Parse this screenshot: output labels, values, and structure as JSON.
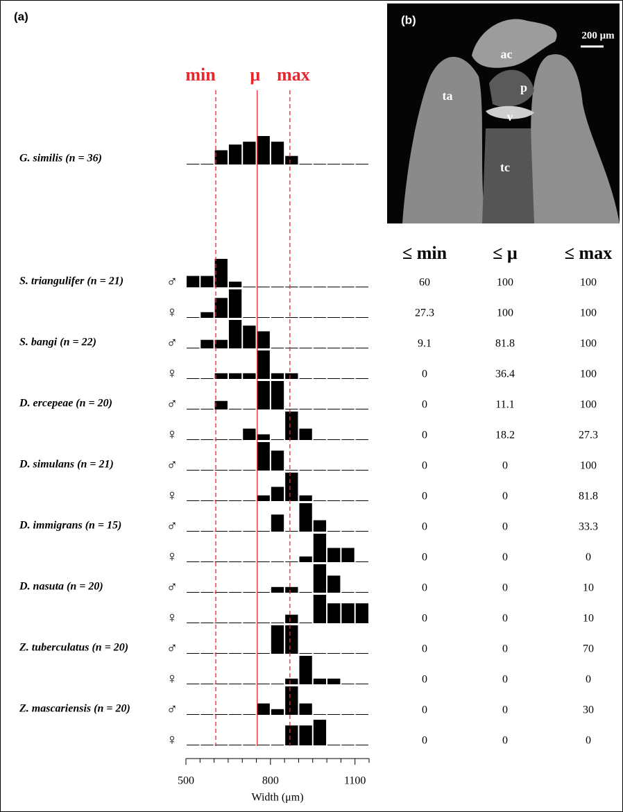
{
  "panel_a": "(a)",
  "panel_b": "(b)",
  "chart_data": {
    "type": "histogram",
    "bins": [
      500,
      550,
      600,
      650,
      700,
      750,
      800,
      850,
      900,
      950,
      1000,
      1050,
      1100,
      1150
    ],
    "xlim": [
      500,
      1150
    ],
    "xticks": [
      500,
      800,
      1100
    ],
    "minor_xticks": [
      550,
      600,
      650,
      700,
      750,
      850,
      900,
      950,
      1000,
      1050,
      1150
    ],
    "xlabel": "Width (μm)",
    "ylim": [
      0,
      10
    ],
    "color": "#000000",
    "reference_color": "#e8262e",
    "reference_lines": [
      {
        "label": "min",
        "value": 606,
        "style": "dashed"
      },
      {
        "label": "μ",
        "value": 753,
        "style": "solid"
      },
      {
        "label": "max",
        "value": 869,
        "style": "dashed"
      }
    ],
    "reference": {
      "label": "G. similis (n = 36)",
      "values": [
        0,
        0,
        5,
        7,
        8,
        10,
        8,
        3,
        0,
        0,
        0,
        0,
        0
      ]
    },
    "species": [
      {
        "label": "S. triangulifer (n = 21)",
        "rows": [
          {
            "sex": "♂",
            "values": [
              4,
              4,
              10,
              2,
              0,
              0,
              0,
              0,
              0,
              0,
              0,
              0,
              0
            ]
          },
          {
            "sex": "♀",
            "values": [
              0,
              2,
              7,
              10,
              0,
              0,
              0,
              0,
              0,
              0,
              0,
              0,
              0
            ]
          }
        ]
      },
      {
        "label": "S. bangi (n = 22)",
        "rows": [
          {
            "sex": "♂",
            "values": [
              0,
              3,
              3,
              10,
              8,
              6,
              0,
              0,
              0,
              0,
              0,
              0,
              0
            ]
          },
          {
            "sex": "♀",
            "values": [
              0,
              0,
              2,
              2,
              2,
              10,
              2,
              2,
              0,
              0,
              0,
              0,
              0
            ]
          }
        ]
      },
      {
        "label": "D. ercepeae (n = 20)",
        "rows": [
          {
            "sex": "♂",
            "values": [
              0,
              0,
              3,
              0,
              0,
              10,
              10,
              0,
              0,
              0,
              0,
              0,
              0
            ]
          },
          {
            "sex": "♀",
            "values": [
              0,
              0,
              0,
              0,
              4,
              2,
              0,
              10,
              4,
              0,
              0,
              0,
              0
            ]
          }
        ]
      },
      {
        "label": "D. simulans (n = 21)",
        "rows": [
          {
            "sex": "♂",
            "values": [
              0,
              0,
              0,
              0,
              0,
              10,
              7,
              0,
              0,
              0,
              0,
              0,
              0
            ]
          },
          {
            "sex": "♀",
            "values": [
              0,
              0,
              0,
              0,
              0,
              2,
              5,
              10,
              2,
              0,
              0,
              0,
              0
            ]
          }
        ]
      },
      {
        "label": "D. immigrans (n = 15)",
        "rows": [
          {
            "sex": "♂",
            "values": [
              0,
              0,
              0,
              0,
              0,
              0,
              6,
              0,
              10,
              4,
              0,
              0,
              0
            ]
          },
          {
            "sex": "♀",
            "values": [
              0,
              0,
              0,
              0,
              0,
              0,
              0,
              0,
              2,
              10,
              5,
              5,
              0
            ]
          }
        ]
      },
      {
        "label": "D. nasuta (n = 20)",
        "rows": [
          {
            "sex": "♂",
            "values": [
              0,
              0,
              0,
              0,
              0,
              0,
              2,
              2,
              0,
              10,
              6,
              0,
              0
            ]
          },
          {
            "sex": "♀",
            "values": [
              0,
              0,
              0,
              0,
              0,
              0,
              0,
              3,
              0,
              10,
              7,
              7,
              7
            ]
          }
        ]
      },
      {
        "label": "Z. tuberculatus (n = 20)",
        "rows": [
          {
            "sex": "♂",
            "values": [
              0,
              0,
              0,
              0,
              0,
              0,
              10,
              10,
              0,
              0,
              0,
              0,
              0
            ]
          },
          {
            "sex": "♀",
            "values": [
              0,
              0,
              0,
              0,
              0,
              0,
              0,
              2,
              10,
              2,
              2,
              0,
              0
            ]
          }
        ]
      },
      {
        "label": "Z. mascariensis (n = 20)",
        "rows": [
          {
            "sex": "♂",
            "values": [
              0,
              0,
              0,
              0,
              0,
              4,
              2,
              10,
              4,
              0,
              0,
              0,
              0
            ]
          },
          {
            "sex": "♀",
            "values": [
              0,
              0,
              0,
              0,
              0,
              0,
              0,
              7,
              7,
              9,
              0,
              0,
              0
            ]
          }
        ]
      }
    ]
  },
  "table": {
    "columns": [
      "≤ min",
      "≤ μ",
      "≤ max"
    ],
    "rows": [
      [
        60,
        100,
        100
      ],
      [
        27.3,
        100,
        100
      ],
      [
        9.1,
        81.8,
        100
      ],
      [
        0,
        36.4,
        100
      ],
      [
        0,
        11.1,
        100
      ],
      [
        0,
        18.2,
        27.3
      ],
      [
        0,
        0,
        100
      ],
      [
        0,
        0,
        81.8
      ],
      [
        0,
        0,
        33.3
      ],
      [
        0,
        0,
        0
      ],
      [
        0,
        0,
        10
      ],
      [
        0,
        0,
        10
      ],
      [
        0,
        0,
        70
      ],
      [
        0,
        0,
        0
      ],
      [
        0,
        0,
        30
      ],
      [
        0,
        0,
        0
      ]
    ]
  },
  "image": {
    "labels": [
      "ac",
      "p",
      "ta",
      "v",
      "tc"
    ],
    "scale_bar": "200 μm"
  }
}
